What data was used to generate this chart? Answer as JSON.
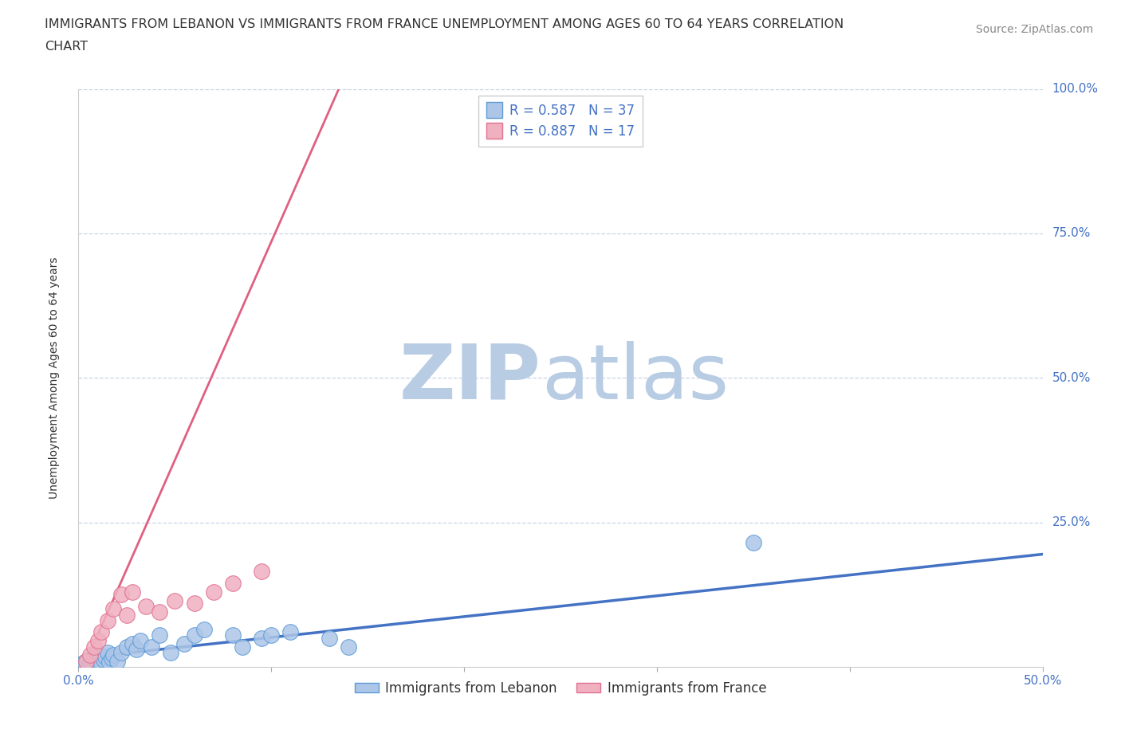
{
  "title_line1": "IMMIGRANTS FROM LEBANON VS IMMIGRANTS FROM FRANCE UNEMPLOYMENT AMONG AGES 60 TO 64 YEARS CORRELATION",
  "title_line2": "CHART",
  "source_text": "Source: ZipAtlas.com",
  "ylabel": "Unemployment Among Ages 60 to 64 years",
  "xlim": [
    0.0,
    0.5
  ],
  "ylim": [
    0.0,
    1.0
  ],
  "xticks": [
    0.0,
    0.1,
    0.2,
    0.3,
    0.4,
    0.5
  ],
  "yticks": [
    0.0,
    0.25,
    0.5,
    0.75,
    1.0
  ],
  "xticklabels": [
    "0.0%",
    "",
    "",
    "",
    "",
    "50.0%"
  ],
  "yticklabels_right": [
    "",
    "25.0%",
    "50.0%",
    "75.0%",
    "100.0%"
  ],
  "background_color": "#ffffff",
  "grid_color": "#c8d4e8",
  "watermark_zip": "ZIP",
  "watermark_atlas": "atlas",
  "watermark_color_zip": "#b8cce4",
  "watermark_color_atlas": "#b8cce4",
  "lebanon_fill_color": "#adc6e8",
  "france_fill_color": "#f0b0c0",
  "lebanon_edge_color": "#5b9bd5",
  "france_edge_color": "#e07090",
  "lebanon_line_color": "#4472c4",
  "france_line_color": "#e06080",
  "lebanon_R": 0.587,
  "lebanon_N": 37,
  "france_R": 0.887,
  "france_N": 17,
  "legend_label_lebanon": "Immigrants from Lebanon",
  "legend_label_france": "Immigrants from France",
  "lebanon_scatter_x": [
    0.002,
    0.003,
    0.004,
    0.005,
    0.006,
    0.007,
    0.008,
    0.009,
    0.01,
    0.011,
    0.012,
    0.013,
    0.014,
    0.015,
    0.016,
    0.017,
    0.018,
    0.02,
    0.022,
    0.025,
    0.028,
    0.03,
    0.032,
    0.038,
    0.042,
    0.048,
    0.055,
    0.06,
    0.065,
    0.08,
    0.085,
    0.095,
    0.1,
    0.11,
    0.13,
    0.14,
    0.35
  ],
  "lebanon_scatter_y": [
    0.005,
    0.008,
    0.01,
    0.012,
    0.005,
    0.008,
    0.015,
    0.018,
    0.01,
    0.02,
    0.005,
    0.012,
    0.018,
    0.025,
    0.008,
    0.015,
    0.02,
    0.01,
    0.025,
    0.035,
    0.04,
    0.03,
    0.045,
    0.035,
    0.055,
    0.025,
    0.04,
    0.055,
    0.065,
    0.055,
    0.035,
    0.05,
    0.055,
    0.06,
    0.05,
    0.035,
    0.215
  ],
  "france_scatter_x": [
    0.004,
    0.006,
    0.008,
    0.01,
    0.012,
    0.015,
    0.018,
    0.022,
    0.025,
    0.028,
    0.035,
    0.042,
    0.05,
    0.06,
    0.07,
    0.08,
    0.095
  ],
  "france_scatter_y": [
    0.01,
    0.02,
    0.035,
    0.045,
    0.06,
    0.08,
    0.1,
    0.125,
    0.09,
    0.13,
    0.105,
    0.095,
    0.115,
    0.11,
    0.13,
    0.145,
    0.165
  ],
  "lebanon_line_x": [
    0.0,
    0.5
  ],
  "lebanon_line_y": [
    0.015,
    0.195
  ],
  "france_line_x": [
    0.0,
    0.135
  ],
  "france_line_y": [
    -0.02,
    1.0
  ],
  "title_fontsize": 11.5,
  "axis_label_fontsize": 10,
  "tick_fontsize": 11,
  "legend_fontsize": 12,
  "source_fontsize": 10
}
